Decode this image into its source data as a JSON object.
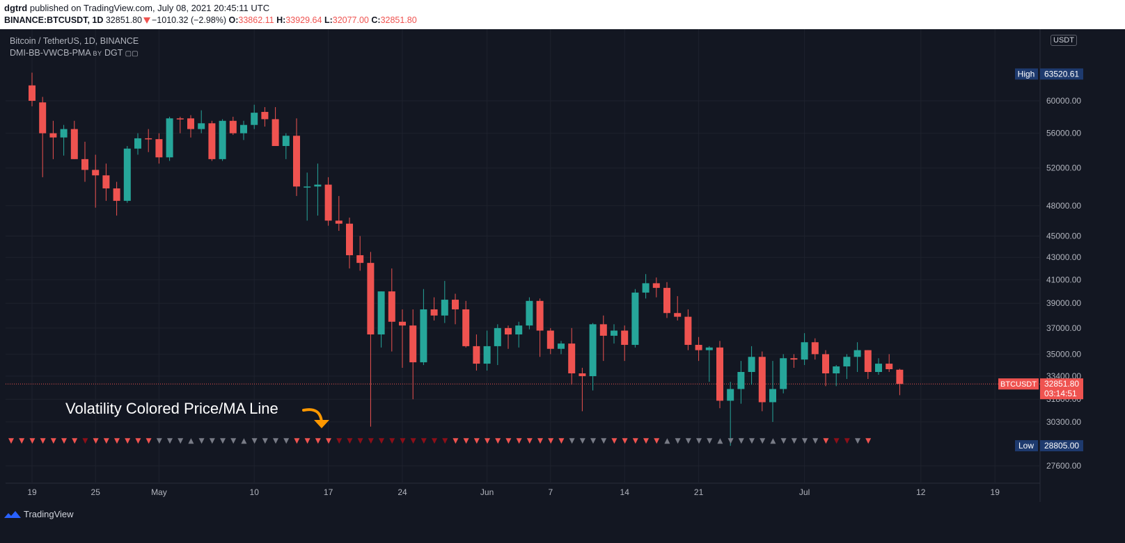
{
  "header": {
    "publisher": "dgtrd",
    "published_text": "published on TradingView.com, July 08, 2021 20:45:11 UTC",
    "symbol_line": "BINANCE:BTCUSDT, 1D",
    "last": "32851.80",
    "change": "−1010.32 (−2.98%)",
    "o_label": "O:",
    "o": "33862.11",
    "h_label": "H:",
    "h": "33929.64",
    "l_label": "L:",
    "l": "32077.00",
    "c_label": "C:",
    "c": "32851.80"
  },
  "legend": {
    "title": "Bitcoin / TetherUS, 1D, BINANCE",
    "indicator": "DMI-BB-VWCB-PMA",
    "by": "BY",
    "author": "DGT"
  },
  "annotation": "Volatility Colored Price/MA Line",
  "currency_button": "USDT",
  "footer_brand": "TradingView",
  "colors": {
    "up": "#26a69a",
    "down": "#ef5350",
    "dark_red": "#8b0f18",
    "gray": "#787b86",
    "bg": "#131722",
    "grid": "#1e222d",
    "orange": "#ff9800"
  },
  "chart_data": {
    "type": "candlestick",
    "scale": "log",
    "ylim": [
      26800,
      66000
    ],
    "y_ticks": [
      60000,
      56000,
      52000,
      48000,
      45000,
      43000,
      41000,
      39000,
      37000,
      35000,
      33400,
      31800,
      30300,
      27600
    ],
    "y_tick_labels": [
      "60000.00",
      "56000.00",
      "52000.00",
      "48000.00",
      "45000.00",
      "43000.00",
      "41000.00",
      "39000.00",
      "37000.00",
      "35000.00",
      "33400.00",
      "31800.00",
      "30300.00",
      "27600.00"
    ],
    "x_labels": [
      {
        "label": "19",
        "day": 0
      },
      {
        "label": "25",
        "day": 6
      },
      {
        "label": "May",
        "day": 12
      },
      {
        "label": "10",
        "day": 21
      },
      {
        "label": "17",
        "day": 28
      },
      {
        "label": "24",
        "day": 35
      },
      {
        "label": "Jun",
        "day": 43
      },
      {
        "label": "7",
        "day": 49
      },
      {
        "label": "14",
        "day": 56
      },
      {
        "label": "21",
        "day": 63
      },
      {
        "label": "Jul",
        "day": 73
      },
      {
        "label": "12",
        "day": 84
      },
      {
        "label": "19",
        "day": 91
      }
    ],
    "high_marker": {
      "label": "High",
      "value": "63520.61"
    },
    "low_marker": {
      "label": "Low",
      "value": "28805.00"
    },
    "last_marker": {
      "symbol": "BTCUSDT",
      "value": "32851.80",
      "countdown": "03:14:51"
    },
    "candles": [
      [
        62000,
        63700,
        59300,
        60000
      ],
      [
        59800,
        60500,
        51000,
        56000
      ],
      [
        56000,
        57500,
        53000,
        55500
      ],
      [
        55500,
        57000,
        53400,
        56500
      ],
      [
        56500,
        57500,
        53000,
        53000
      ],
      [
        53000,
        55000,
        50500,
        51800
      ],
      [
        51800,
        53500,
        47800,
        51200
      ],
      [
        51200,
        52500,
        48500,
        49800
      ],
      [
        49800,
        50500,
        47000,
        48500
      ],
      [
        48500,
        54500,
        48300,
        54200
      ],
      [
        54200,
        56000,
        53500,
        55400
      ],
      [
        55400,
        56500,
        53800,
        55300
      ],
      [
        55300,
        56000,
        52500,
        53200
      ],
      [
        53200,
        58000,
        52800,
        57800
      ],
      [
        57800,
        58000,
        56000,
        57700
      ],
      [
        57800,
        58200,
        55500,
        56500
      ],
      [
        56500,
        58800,
        56000,
        57200
      ],
      [
        57200,
        57500,
        52800,
        53000
      ],
      [
        53000,
        57700,
        52800,
        57500
      ],
      [
        57500,
        58000,
        55800,
        56000
      ],
      [
        56000,
        57500,
        55200,
        57000
      ],
      [
        57000,
        59500,
        56500,
        58500
      ],
      [
        58600,
        59200,
        56800,
        57700
      ],
      [
        57700,
        59200,
        54500,
        54500
      ],
      [
        54500,
        56000,
        53000,
        55700
      ],
      [
        55700,
        57800,
        49000,
        50000
      ],
      [
        50000,
        51500,
        46500,
        50000
      ],
      [
        50000,
        52500,
        47000,
        50200
      ],
      [
        50200,
        51000,
        46000,
        46500
      ],
      [
        46500,
        49000,
        45500,
        46200
      ],
      [
        46200,
        46800,
        42000,
        43200
      ],
      [
        43200,
        45000,
        41800,
        42500
      ],
      [
        42500,
        43500,
        30000,
        36500
      ],
      [
        36500,
        40000,
        35500,
        40000
      ],
      [
        40000,
        42000,
        35200,
        37500
      ],
      [
        37500,
        38500,
        34000,
        37200
      ],
      [
        37200,
        38500,
        31800,
        34400
      ],
      [
        34400,
        40200,
        34200,
        38500
      ],
      [
        38500,
        39500,
        37600,
        38000
      ],
      [
        38000,
        40900,
        37400,
        39300
      ],
      [
        39300,
        39800,
        37300,
        38500
      ],
      [
        38500,
        39200,
        35500,
        35600
      ],
      [
        35600,
        36500,
        33800,
        34300
      ],
      [
        34300,
        36800,
        33800,
        35600
      ],
      [
        35600,
        37300,
        34200,
        37000
      ],
      [
        37000,
        37200,
        35400,
        36500
      ],
      [
        36500,
        37500,
        35500,
        37200
      ],
      [
        37200,
        39500,
        36900,
        39200
      ],
      [
        39200,
        39400,
        34800,
        36800
      ],
      [
        36800,
        37000,
        35000,
        35400
      ],
      [
        35400,
        36000,
        35000,
        35800
      ],
      [
        35800,
        37000,
        32800,
        33600
      ],
      [
        33600,
        34000,
        31000,
        33400
      ],
      [
        33400,
        37400,
        32400,
        37300
      ],
      [
        37300,
        38000,
        34500,
        36400
      ],
      [
        36400,
        37300,
        35800,
        36800
      ],
      [
        36800,
        37200,
        34500,
        35700
      ],
      [
        35700,
        40200,
        35500,
        39900
      ],
      [
        39900,
        41500,
        39400,
        40700
      ],
      [
        40700,
        41200,
        39500,
        40300
      ],
      [
        40300,
        40800,
        37800,
        38200
      ],
      [
        38200,
        39600,
        37600,
        37900
      ],
      [
        37900,
        38500,
        35300,
        35700
      ],
      [
        35700,
        36300,
        34500,
        35300
      ],
      [
        35300,
        35600,
        33000,
        35500
      ],
      [
        35500,
        36000,
        31200,
        31700
      ],
      [
        31700,
        33000,
        28800,
        32500
      ],
      [
        32500,
        34500,
        31500,
        33700
      ],
      [
        33700,
        35600,
        32800,
        34800
      ],
      [
        34800,
        35200,
        31000,
        31600
      ],
      [
        31600,
        34500,
        30300,
        32500
      ],
      [
        32500,
        35000,
        32200,
        34700
      ],
      [
        34700,
        35000,
        34000,
        34600
      ],
      [
        34600,
        36600,
        34200,
        35900
      ],
      [
        35900,
        36200,
        34600,
        35000
      ],
      [
        35000,
        35300,
        32700,
        33600
      ],
      [
        33600,
        34200,
        32700,
        34100
      ],
      [
        34100,
        35000,
        33200,
        34800
      ],
      [
        34800,
        35900,
        33700,
        35300
      ],
      [
        35300,
        35300,
        33200,
        33700
      ],
      [
        33700,
        34700,
        33500,
        34300
      ],
      [
        34300,
        35000,
        33700,
        33900
      ],
      [
        33862,
        33930,
        32077,
        32852
      ]
    ],
    "markers": "rrrrrrrdrrrrrrgggggggggggggrrrrdddddddddddrrrrrrrrrrrggggrrrrrgggggggggggggggrddgrgggggggggggggggggg",
    "marker_value": 29100
  }
}
